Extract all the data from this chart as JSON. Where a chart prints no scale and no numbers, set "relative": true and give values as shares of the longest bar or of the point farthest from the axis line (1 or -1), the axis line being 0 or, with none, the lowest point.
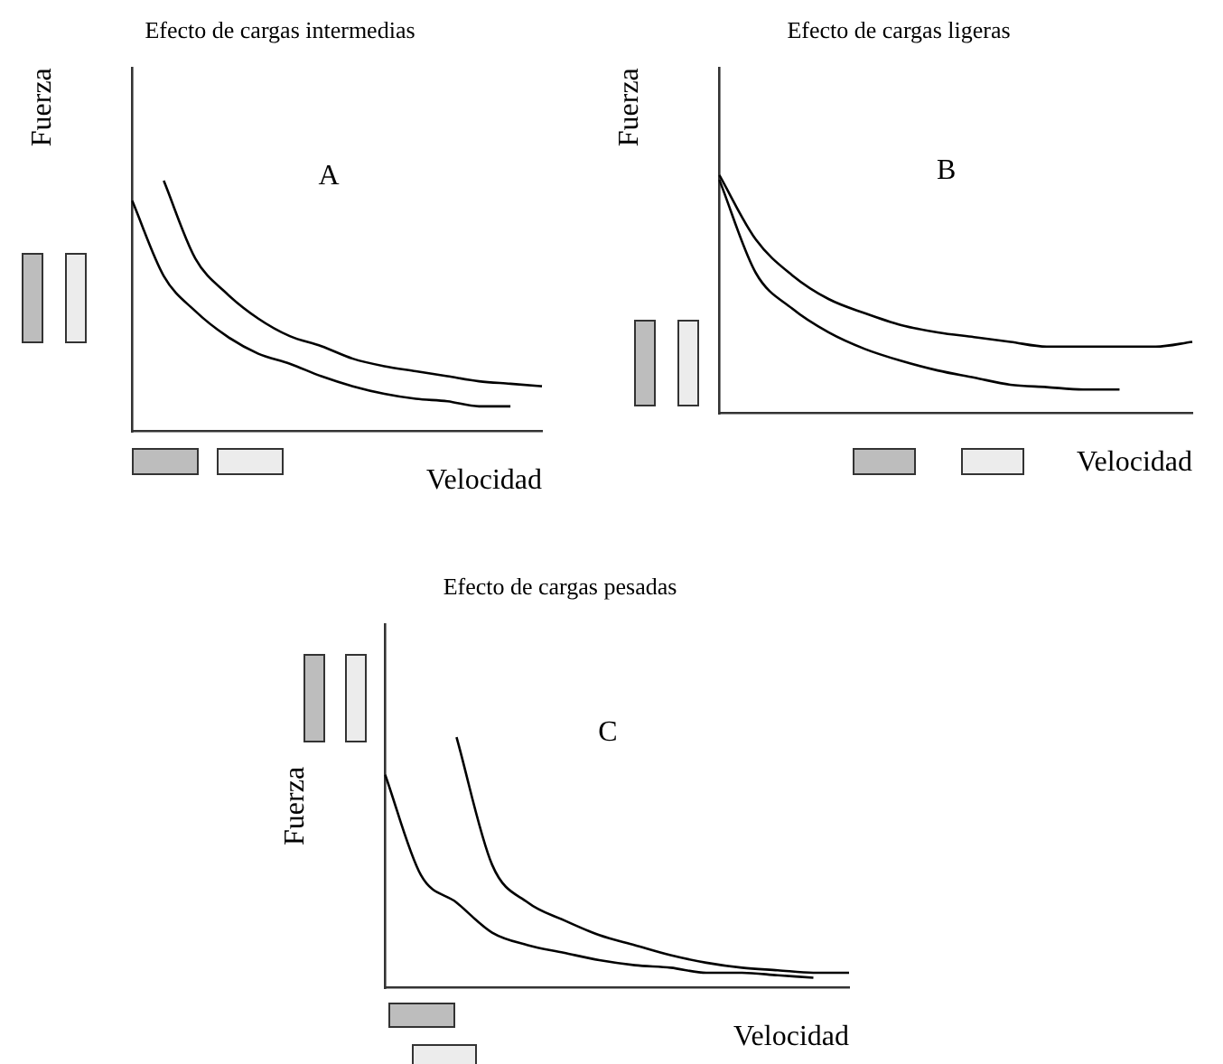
{
  "chart_data": [
    {
      "type": "line",
      "title": "Efecto de cargas intermedias",
      "xlabel": "Velocidad",
      "ylabel": "Fuerza",
      "annotations": [
        "A"
      ],
      "relative": true,
      "marker": "none",
      "line_style": "solid",
      "legend": false,
      "grid": false,
      "categories": [
        null,
        null,
        null,
        null,
        null,
        null,
        null,
        null,
        null,
        null,
        null,
        null,
        null,
        null
      ],
      "series": [
        {
          "color": "#000000",
          "values": [
            null,
            1,
            0.69,
            0.55,
            0.45,
            0.38,
            0.34,
            0.29,
            0.26,
            0.24,
            0.22,
            0.2,
            0.19,
            0.18
          ]
        },
        {
          "color": "#000000",
          "values": [
            0.92,
            0.62,
            0.48,
            0.38,
            0.31,
            0.27,
            0.22,
            0.18,
            0.15,
            0.13,
            0.12,
            0.1,
            0.1,
            null
          ]
        }
      ]
    },
    {
      "type": "line",
      "title": "Efecto de cargas ligeras",
      "xlabel": "Velocidad",
      "ylabel": "Fuerza",
      "annotations": [
        "B"
      ],
      "relative": true,
      "marker": "none",
      "line_style": "solid",
      "legend": false,
      "grid": false,
      "categories": [
        null,
        null,
        null,
        null,
        null,
        null,
        null,
        null,
        null,
        null,
        null,
        null,
        null,
        null
      ],
      "series": [
        {
          "color": "#000000",
          "values": [
            1,
            0.73,
            0.58,
            0.48,
            0.42,
            0.37,
            0.34,
            0.32,
            0.3,
            0.28,
            0.28,
            0.28,
            0.28,
            0.3
          ]
        },
        {
          "color": "#000000",
          "values": [
            0.98,
            0.59,
            0.44,
            0.34,
            0.27,
            0.22,
            0.18,
            0.15,
            0.12,
            0.11,
            0.1,
            0.1,
            null,
            null
          ]
        }
      ]
    },
    {
      "type": "line",
      "title": "Efecto de cargas pesadas",
      "xlabel": "Velocidad",
      "ylabel": "Fuerza",
      "annotations": [
        "C"
      ],
      "relative": true,
      "marker": "none",
      "line_style": "solid",
      "legend": false,
      "grid": false,
      "categories": [
        null,
        null,
        null,
        null,
        null,
        null,
        null,
        null,
        null,
        null,
        null,
        null,
        null,
        null
      ],
      "series": [
        {
          "color": "#000000",
          "values": [
            null,
            null,
            1,
            0.49,
            0.34,
            0.27,
            0.21,
            0.17,
            0.13,
            0.1,
            0.08,
            0.07,
            0.06,
            0.06
          ]
        },
        {
          "color": "#000000",
          "values": [
            0.85,
            0.45,
            0.34,
            0.22,
            0.17,
            0.14,
            0.11,
            0.09,
            0.08,
            0.06,
            0.06,
            0.05,
            0.04,
            null
          ]
        }
      ]
    }
  ]
}
